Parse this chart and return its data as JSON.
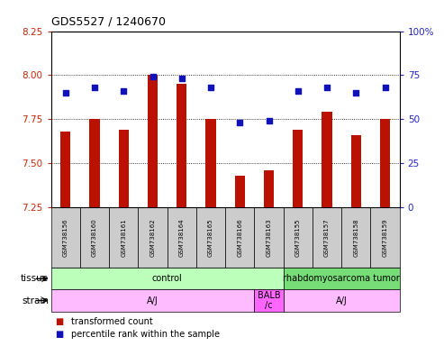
{
  "title": "GDS5527 / 1240670",
  "samples": [
    "GSM738156",
    "GSM738160",
    "GSM738161",
    "GSM738162",
    "GSM738164",
    "GSM738165",
    "GSM738166",
    "GSM738163",
    "GSM738155",
    "GSM738157",
    "GSM738158",
    "GSM738159"
  ],
  "transformed_count": [
    7.68,
    7.75,
    7.69,
    8.0,
    7.95,
    7.75,
    7.43,
    7.46,
    7.69,
    7.79,
    7.66,
    7.75
  ],
  "percentile_rank": [
    65,
    68,
    66,
    74,
    73,
    68,
    48,
    49,
    66,
    68,
    65,
    68
  ],
  "ylim_left": [
    7.25,
    8.25
  ],
  "ylim_right": [
    0,
    100
  ],
  "yticks_left": [
    7.25,
    7.5,
    7.75,
    8.0,
    8.25
  ],
  "yticks_right": [
    0,
    25,
    50,
    75,
    100
  ],
  "ytick_right_labels": [
    "0",
    "25",
    "50",
    "75",
    "100%"
  ],
  "bar_color": "#bb1100",
  "dot_color": "#1111bb",
  "tissue_configs": [
    {
      "text": "control",
      "start": 0,
      "end": 7,
      "color": "#bbffbb"
    },
    {
      "text": "rhabdomyosarcoma tumor",
      "start": 8,
      "end": 11,
      "color": "#77dd77"
    }
  ],
  "strain_configs": [
    {
      "text": "A/J",
      "start": 0,
      "end": 6,
      "color": "#ffbbff"
    },
    {
      "text": "BALB\n/c",
      "start": 7,
      "end": 7,
      "color": "#ff66ff"
    },
    {
      "text": "A/J",
      "start": 8,
      "end": 11,
      "color": "#ffbbff"
    }
  ],
  "tissue_row_label": "tissue",
  "strain_row_label": "strain",
  "legend_bar_label": "transformed count",
  "legend_dot_label": "percentile rank within the sample",
  "left_tick_color": "#cc2200",
  "right_tick_color": "#2222cc",
  "ybaseline": 7.25,
  "bar_width": 0.35
}
